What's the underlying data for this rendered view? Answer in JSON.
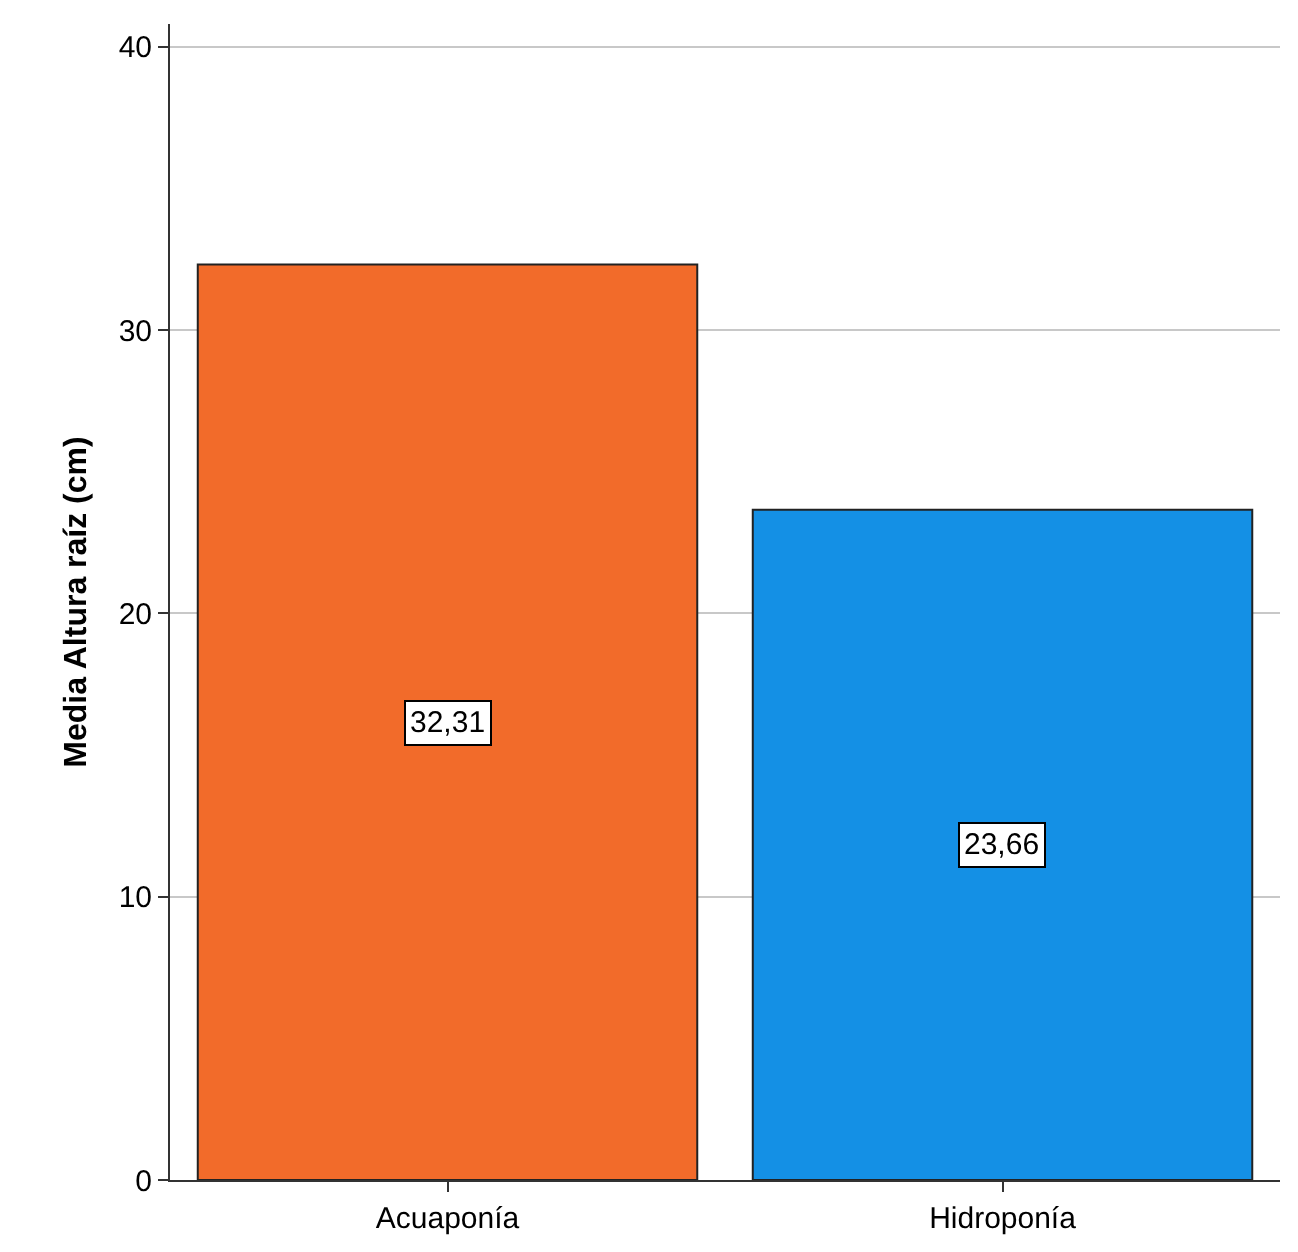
{
  "chart_data": {
    "type": "bar",
    "ylabel": "Media Altura raíz (cm)",
    "categories": [
      "Acuaponía",
      "Hidroponía"
    ],
    "values": [
      32.31,
      23.66
    ],
    "colors": [
      "#f26b2a",
      "#1490e5"
    ],
    "value_labels": [
      "32,31",
      "23,66"
    ],
    "ylim": [
      0,
      40.8
    ],
    "yticks": [
      0,
      10,
      20,
      30,
      40
    ],
    "grid": "y",
    "legend": false
  }
}
